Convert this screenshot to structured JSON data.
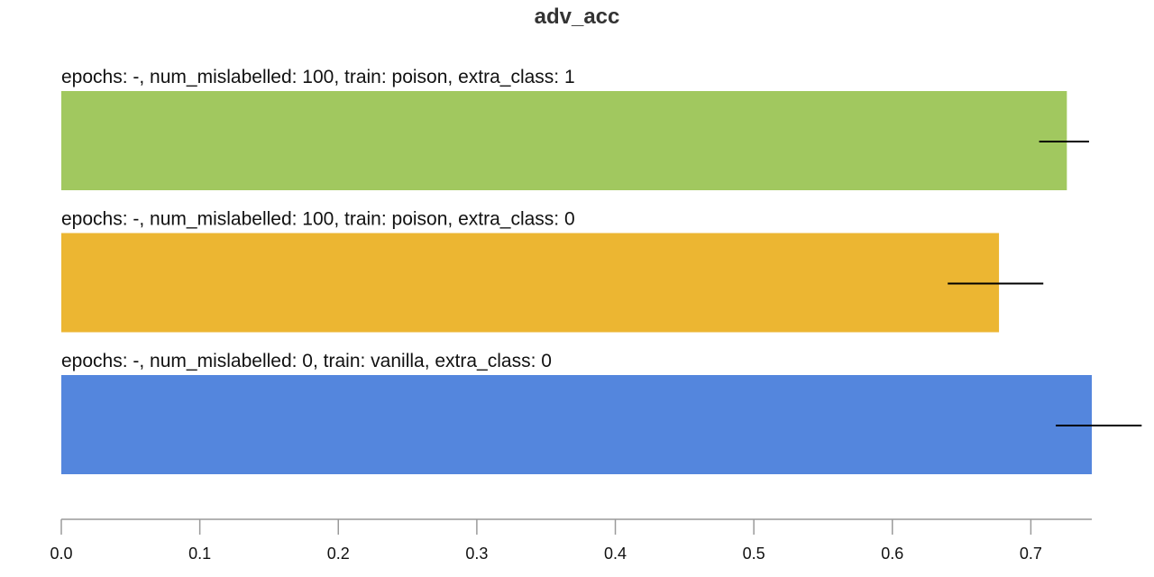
{
  "chart_data": {
    "type": "bar",
    "orientation": "horizontal",
    "title": "adv_acc",
    "xlabel": "",
    "ylabel": "",
    "xlim": [
      0.0,
      0.744
    ],
    "x_ticks": [
      "0.0",
      "0.1",
      "0.2",
      "0.3",
      "0.4",
      "0.5",
      "0.6",
      "0.7"
    ],
    "x_tick_values": [
      0.0,
      0.1,
      0.2,
      0.3,
      0.4,
      0.5,
      0.6,
      0.7
    ],
    "grid": false,
    "bars": [
      {
        "label": "epochs: -, num_mislabelled: 100, train: poison, extra_class: 1",
        "value": 0.726,
        "error_low": 0.706,
        "error_high": 0.742,
        "color": "#a1c85f"
      },
      {
        "label": "epochs: -, num_mislabelled: 100, train: poison, extra_class: 0",
        "value": 0.677,
        "error_low": 0.64,
        "error_high": 0.709,
        "color": "#ecb632"
      },
      {
        "label": "epochs: -, num_mislabelled: 0, train: vanilla, extra_class: 0",
        "value": 0.744,
        "error_low": 0.718,
        "error_high": 0.78,
        "color": "#5486dd"
      }
    ]
  }
}
